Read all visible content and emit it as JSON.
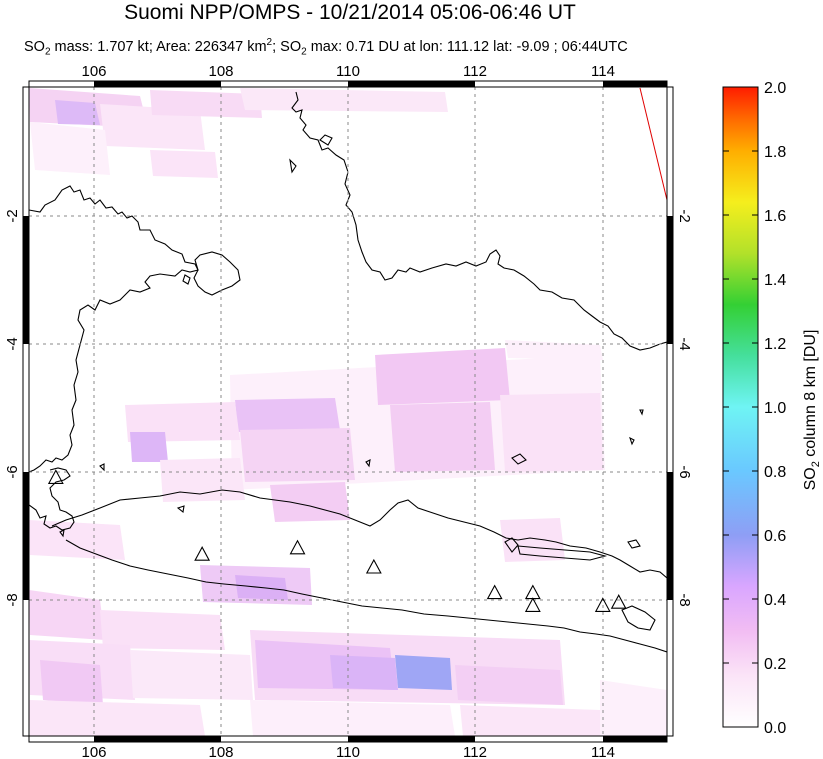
{
  "title": "Suomi NPP/OMPS - 10/21/2014 05:06-06:46 UT",
  "subtitle": {
    "prefix": "SO",
    "sub1": "2",
    "mass": " mass: 1.707 kt; Area: 226347 km",
    "sup": "2",
    "sep": "; SO",
    "sub2": "2",
    "rest": " max: 0.71 DU at lon: 111.12 lat: -9.09 ; 06:44UTC"
  },
  "map": {
    "lon_range": [
      105,
      115
    ],
    "lat_range": [
      -10.2,
      0.0
    ],
    "lon_ticks": [
      "106",
      "108",
      "110",
      "112",
      "114"
    ],
    "lat_ticks": [
      "-2",
      "-4",
      "-6",
      "-8"
    ],
    "volcano_markers": [
      [
        105.4,
        -6.1
      ],
      [
        107.7,
        -7.3
      ],
      [
        109.2,
        -7.2
      ],
      [
        110.4,
        -7.5
      ],
      [
        112.3,
        -7.9
      ],
      [
        112.9,
        -7.9
      ],
      [
        112.9,
        -8.1
      ],
      [
        114.0,
        -8.1
      ],
      [
        114.25,
        -8.05
      ]
    ]
  },
  "colorbar": {
    "ticks": [
      "0.0",
      "0.2",
      "0.4",
      "0.6",
      "0.8",
      "1.0",
      "1.2",
      "1.4",
      "1.6",
      "1.8",
      "2.0"
    ],
    "label_pre": "SO",
    "label_sub": "2",
    "label_post": " column 8 km [DU]",
    "colors": [
      "#ffffff",
      "#f7c6f1",
      "#d7a3ff",
      "#8ea0f5",
      "#6fc8ff",
      "#7ff2f2",
      "#46e09a",
      "#3ad23a",
      "#b6e52a",
      "#f5ef1e",
      "#ffb400",
      "#ff6a00",
      "#ff1e00"
    ]
  }
}
